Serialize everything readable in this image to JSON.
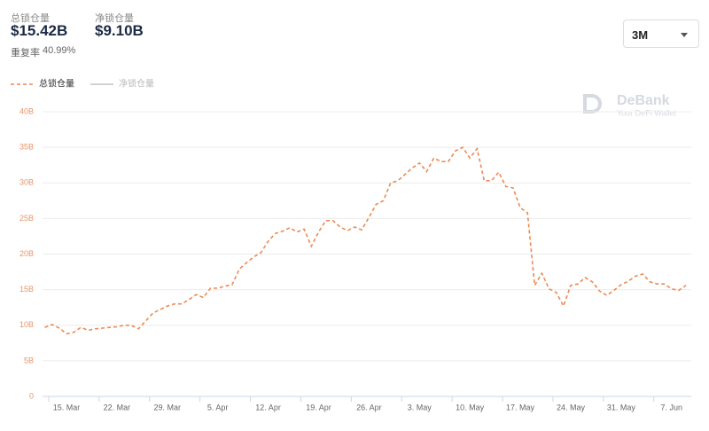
{
  "header": {
    "stats": [
      {
        "label": "总锁仓量",
        "value": "$15.42B"
      },
      {
        "label": "净锁仓量",
        "value": "$9.10B"
      }
    ],
    "ratio_label": "重复率",
    "ratio_value": "40.99%"
  },
  "control": {
    "range": "3M"
  },
  "watermark": {
    "brand": "DeBank",
    "tagline": "Your DeFi Wallet"
  },
  "chart_data": {
    "type": "line",
    "categories": [
      "12. Mar",
      "13. Mar",
      "14. Mar",
      "15. Mar",
      "16. Mar",
      "17. Mar",
      "18. Mar",
      "19. Mar",
      "20. Mar",
      "21. Mar",
      "22. Mar",
      "23. Mar",
      "24. Mar",
      "25. Mar",
      "26. Mar",
      "27. Mar",
      "28. Mar",
      "29. Mar",
      "30. Mar",
      "31. Mar",
      "1. Apr",
      "2. Apr",
      "3. Apr",
      "4. Apr",
      "5. Apr",
      "6. Apr",
      "7. Apr",
      "8. Apr",
      "9. Apr",
      "10. Apr",
      "11. Apr",
      "12. Apr",
      "13. Apr",
      "14. Apr",
      "15. Apr",
      "16. Apr",
      "17. Apr",
      "18. Apr",
      "19. Apr",
      "20. Apr",
      "21. Apr",
      "22. Apr",
      "23. Apr",
      "24. Apr",
      "25. Apr",
      "26. Apr",
      "27. Apr",
      "28. Apr",
      "29. Apr",
      "30. Apr",
      "1. May",
      "2. May",
      "3. May",
      "4. May",
      "5. May",
      "6. May",
      "7. May",
      "8. May",
      "9. May",
      "10. May",
      "11. May",
      "12. May",
      "13. May",
      "14. May",
      "15. May",
      "16. May",
      "17. May",
      "18. May",
      "19. May",
      "20. May",
      "21. May",
      "22. May",
      "23. May",
      "24. May",
      "25. May",
      "26. May",
      "27. May",
      "28. May",
      "29. May",
      "30. May",
      "31. May",
      "1. Jun",
      "2. Jun",
      "3. Jun",
      "4. Jun",
      "5. Jun",
      "6. Jun",
      "7. Jun",
      "8. Jun",
      "9. Jun"
    ],
    "xticks": [
      "15. Mar",
      "22. Mar",
      "29. Mar",
      "5. Apr",
      "12. Apr",
      "19. Apr",
      "26. Apr",
      "3. May",
      "10. May",
      "17. May",
      "24. May",
      "31. May",
      "7. Jun"
    ],
    "series": [
      {
        "name": "总锁仓量",
        "color": "#ec8a52",
        "dashed": true,
        "visible": true,
        "values": [
          9.7,
          10.1,
          9.6,
          8.8,
          9.0,
          9.7,
          9.3,
          9.5,
          9.6,
          9.7,
          9.8,
          10.0,
          10.0,
          9.5,
          10.6,
          11.7,
          12.2,
          12.7,
          13.0,
          13.0,
          13.6,
          14.3,
          13.9,
          15.2,
          15.2,
          15.5,
          15.7,
          17.9,
          18.8,
          19.6,
          20.2,
          21.8,
          22.9,
          23.2,
          23.7,
          23.1,
          23.5,
          21.1,
          23.1,
          24.7,
          24.7,
          23.8,
          23.3,
          23.8,
          23.4,
          25.2,
          27.0,
          27.5,
          30.0,
          30.3,
          31.2,
          32.1,
          32.8,
          31.6,
          33.5,
          33.0,
          33.0,
          34.5,
          35.0,
          33.5,
          34.8,
          30.3,
          30.3,
          31.5,
          29.5,
          29.3,
          26.5,
          25.8,
          15.6,
          17.3,
          15.1,
          14.6,
          12.7,
          15.6,
          15.8,
          16.7,
          16.1,
          14.8,
          14.2,
          14.9,
          15.7,
          16.2,
          16.9,
          17.2,
          16.1,
          15.8,
          15.8,
          15.1,
          14.9,
          15.6
        ]
      },
      {
        "name": "净锁仓量",
        "color": "#c4c4c4",
        "dashed": false,
        "visible": false
      }
    ],
    "ylim": [
      0,
      40
    ],
    "yticks": [
      0,
      {
        "value": 5,
        "label": "5B"
      },
      {
        "value": 10,
        "label": "10B"
      },
      {
        "value": 15,
        "label": "15B"
      },
      {
        "value": 20,
        "label": "20B"
      },
      {
        "value": 25,
        "label": "25B"
      },
      {
        "value": 30,
        "label": "30B"
      },
      {
        "value": 35,
        "label": "35B"
      },
      {
        "value": 40,
        "label": "40B"
      }
    ],
    "grid": true
  }
}
